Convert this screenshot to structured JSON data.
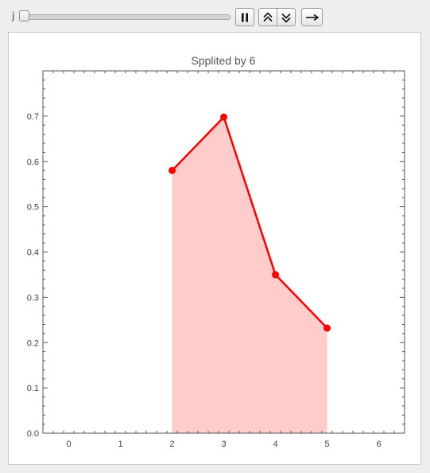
{
  "controls": {
    "variable_label": "j",
    "slider_value_fraction": 0.0,
    "buttons": [
      {
        "name": "pause-button",
        "icon": "pause-icon"
      },
      {
        "name": "faster-button",
        "icon": "double-chevron-up-icon"
      },
      {
        "name": "slower-button",
        "icon": "double-chevron-down-icon"
      },
      {
        "name": "direction-button",
        "icon": "arrow-right-icon"
      }
    ]
  },
  "chart_data": {
    "type": "area",
    "title": "Spplited by 6",
    "x": [
      2,
      3,
      4,
      5
    ],
    "y": [
      0.58,
      0.698,
      0.35,
      0.232
    ],
    "xlim": [
      -0.5,
      6.5
    ],
    "ylim": [
      0,
      0.8
    ],
    "x_ticks": [
      0,
      1,
      2,
      3,
      4,
      5,
      6
    ],
    "y_ticks": [
      "0.0",
      "0.1",
      "0.2",
      "0.3",
      "0.4",
      "0.5",
      "0.6",
      "0.7"
    ],
    "grid": false,
    "line_color": "#ff0000",
    "fill_color": "#ffcccc"
  }
}
